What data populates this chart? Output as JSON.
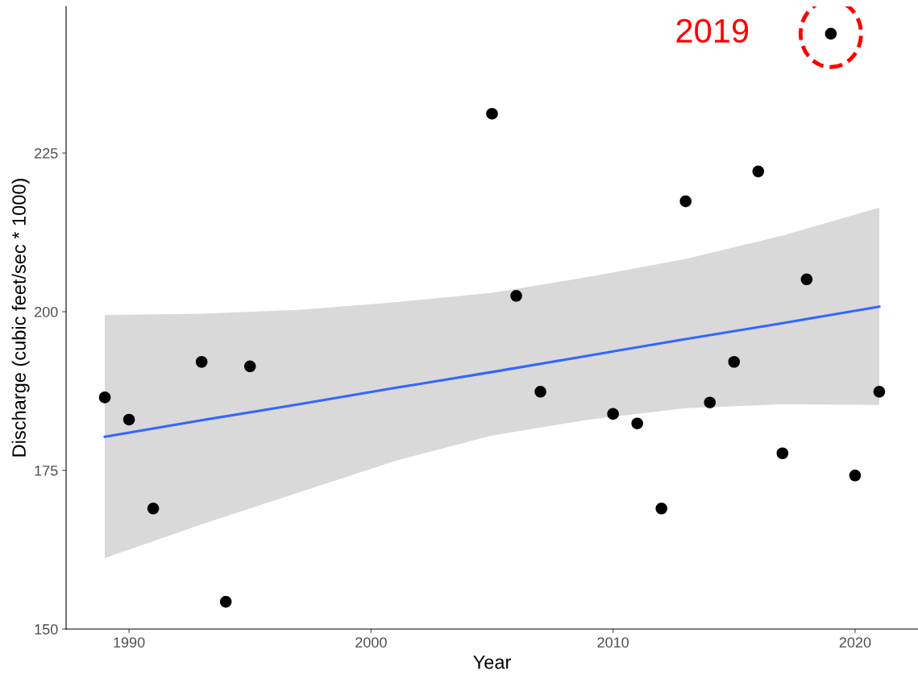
{
  "chart_data": {
    "type": "scatter",
    "xlabel": "Year",
    "ylabel": "Discharge (cubic feet/sec * 1000)",
    "x": [
      1989,
      1990,
      1991,
      1993,
      1994,
      1995,
      2005,
      2006,
      2007,
      2010,
      2011,
      2012,
      2013,
      2014,
      2015,
      2016,
      2017,
      2018,
      2019,
      2020,
      2021
    ],
    "series": [
      {
        "color": "#000000",
        "marker": "circle",
        "values": [
          186.5,
          183.0,
          169.0,
          192.1,
          154.3,
          191.4,
          231.2,
          202.5,
          187.4,
          183.9,
          182.4,
          169.0,
          217.4,
          185.7,
          192.1,
          222.1,
          177.7,
          205.1,
          243.8,
          174.2,
          187.4
        ]
      },
      {
        "type": "line",
        "marker": "none",
        "color": "#3366ff",
        "x": [
          1989,
          1993,
          1997,
          2001,
          2005,
          2009,
          2013,
          2017,
          2021
        ],
        "values": [
          180.3,
          182.9,
          185.4,
          188.0,
          190.5,
          193.1,
          195.7,
          198.2,
          200.8
        ],
        "lower": [
          161.2,
          166.5,
          171.5,
          176.5,
          180.5,
          183.0,
          184.8,
          185.4,
          185.3
        ],
        "upper": [
          199.5,
          199.7,
          200.3,
          201.5,
          203.0,
          205.5,
          208.3,
          212.0,
          216.4
        ]
      }
    ],
    "annotations": [
      {
        "text": "2019",
        "x": 2019,
        "y": 243.8
      }
    ],
    "xlim": [
      1987.4,
      2022.6
    ],
    "ylim": [
      150,
      248.1
    ],
    "xticks": [
      1990,
      2000,
      2010,
      2020
    ],
    "yticks": [
      150,
      175,
      200,
      225
    ],
    "grid": false,
    "legend": false
  }
}
